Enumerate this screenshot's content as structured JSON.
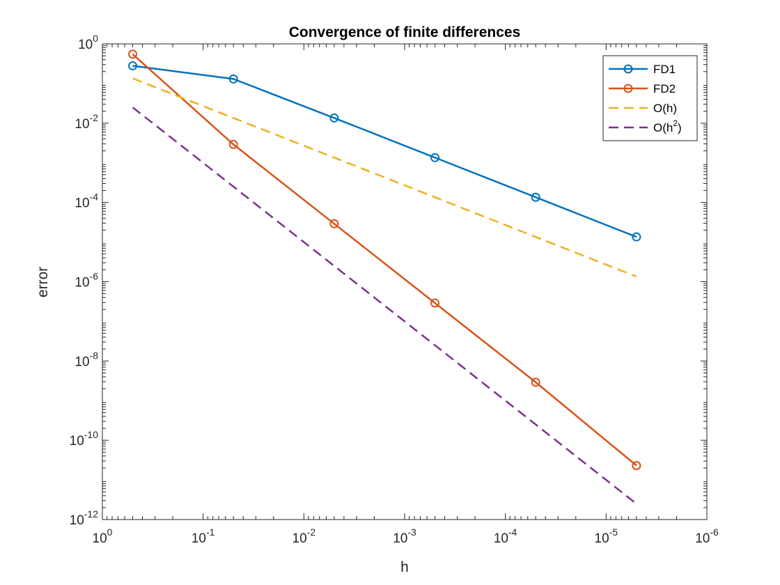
{
  "chart_data": {
    "type": "line",
    "title": "Convergence of finite differences",
    "xlabel": "h",
    "ylabel": "error",
    "x_scale": "log",
    "y_scale": "log",
    "x_reversed": true,
    "xlim": [
      1,
      1e-06
    ],
    "ylim": [
      1e-12,
      1
    ],
    "grid": false,
    "legend_position": "top-right",
    "x_ticks": [
      {
        "value": 1,
        "base": "10",
        "exp": "0"
      },
      {
        "value": 0.1,
        "base": "10",
        "exp": "-1"
      },
      {
        "value": 0.01,
        "base": "10",
        "exp": "-2"
      },
      {
        "value": 0.001,
        "base": "10",
        "exp": "-3"
      },
      {
        "value": 0.0001,
        "base": "10",
        "exp": "-4"
      },
      {
        "value": 1e-05,
        "base": "10",
        "exp": "-5"
      },
      {
        "value": 1e-06,
        "base": "10",
        "exp": "-6"
      }
    ],
    "y_ticks": [
      {
        "value": 1,
        "base": "10",
        "exp": "0"
      },
      {
        "value": 0.01,
        "base": "10",
        "exp": "-2"
      },
      {
        "value": 0.0001,
        "base": "10",
        "exp": "-4"
      },
      {
        "value": 1e-06,
        "base": "10",
        "exp": "-6"
      },
      {
        "value": 1e-08,
        "base": "10",
        "exp": "-8"
      },
      {
        "value": 1e-10,
        "base": "10",
        "exp": "-10"
      },
      {
        "value": 1e-12,
        "base": "10",
        "exp": "-12"
      }
    ],
    "x": [
      0.5,
      0.05,
      0.005,
      0.0005,
      5e-05,
      5e-06
    ],
    "series": [
      {
        "name": "FD1",
        "label_main": "FD1",
        "label_sup": "",
        "label_tail": "",
        "color": "#0072BD",
        "style": "solid",
        "marker": "circle",
        "values": [
          0.28,
          0.13,
          0.0135,
          0.00135,
          0.000135,
          1.35e-05
        ]
      },
      {
        "name": "FD2",
        "label_main": "FD2",
        "label_sup": "",
        "label_tail": "",
        "color": "#D95319",
        "style": "solid",
        "marker": "circle",
        "values": [
          0.55,
          0.0029,
          2.9e-05,
          2.9e-07,
          2.9e-09,
          2.3e-11
        ]
      },
      {
        "name": "O(h)",
        "label_main": "O(h)",
        "label_sup": "",
        "label_tail": "",
        "color": "#EDB120",
        "style": "dashed",
        "marker": "none",
        "values": [
          0.135,
          0.0135,
          0.00135,
          0.000135,
          1.35e-05,
          1.35e-06
        ]
      },
      {
        "name": "O(h2)",
        "label_main": "O(h",
        "label_sup": "2",
        "label_tail": ")",
        "color": "#7E2F8E",
        "style": "dashed",
        "marker": "none",
        "values": [
          0.025,
          0.00025,
          2.5e-06,
          2.5e-08,
          2.5e-10,
          2.5e-12
        ]
      }
    ]
  }
}
